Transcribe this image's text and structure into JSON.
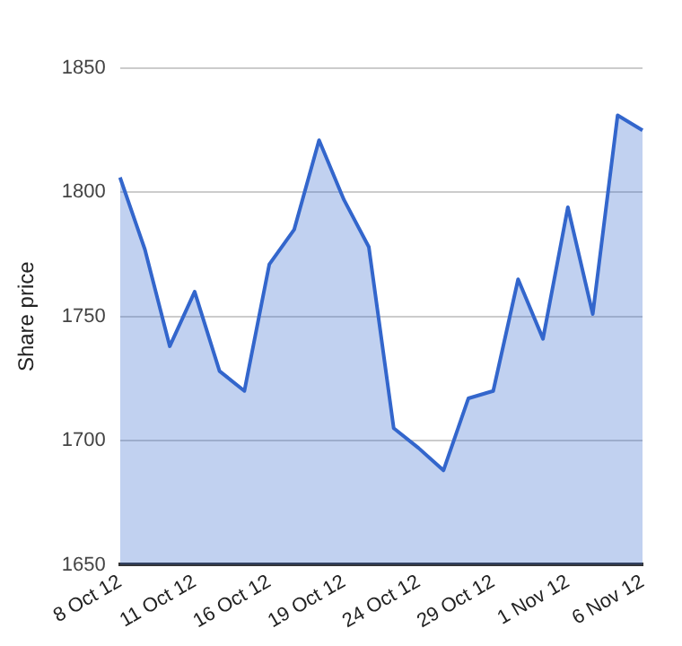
{
  "chart_data": {
    "type": "area",
    "ylabel": "Share price",
    "categories": [
      "8 Oct 12",
      null,
      null,
      "11 Oct 12",
      null,
      null,
      "16 Oct 12",
      null,
      null,
      "19 Oct 12",
      null,
      null,
      "24 Oct 12",
      null,
      null,
      "29 Oct 12",
      null,
      null,
      "1 Nov 12",
      null,
      null,
      "6 Nov 12"
    ],
    "series": [
      {
        "color": "#3366cc",
        "values": [
          1806,
          1777,
          1738,
          1760,
          1728,
          1720,
          1771,
          1785,
          1821,
          1797,
          1778,
          1705,
          1697,
          1688,
          1717,
          1720,
          1765,
          1741,
          1794,
          1751,
          1831,
          1825
        ]
      }
    ],
    "ylim": [
      1650,
      1850
    ],
    "yticks": [
      1650,
      1700,
      1750,
      1800,
      1850
    ],
    "grid": "y",
    "marker": "none",
    "line_style": "solid"
  }
}
